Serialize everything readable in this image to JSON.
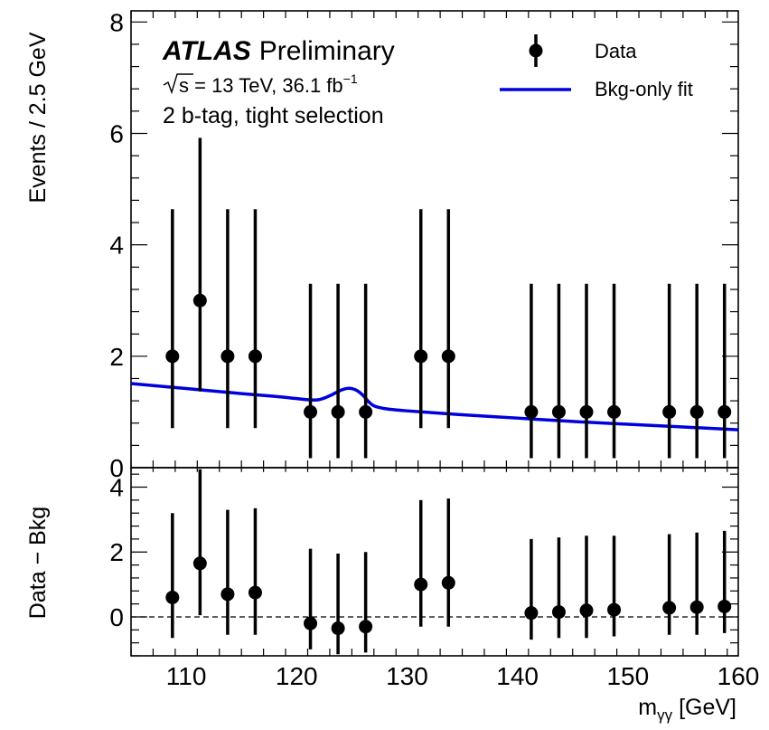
{
  "chart_data": {
    "type": "scatter",
    "x_axis": {
      "label_main": "m",
      "label_sub": "γγ",
      "label_unit": " [GeV]",
      "range": [
        105,
        160
      ],
      "major_ticks": [
        110,
        120,
        130,
        140,
        150,
        160
      ],
      "minor_step": 2
    },
    "main_panel": {
      "ylabel": "Events / 2.5 GeV",
      "ylim": [
        0,
        8.2
      ],
      "major_ticks": [
        0,
        2,
        4,
        6,
        8
      ],
      "minor_step": 0.4,
      "annotation": {
        "experiment": "ATLAS",
        "status": "Preliminary",
        "energy_line": "s = 13 TeV, 36.1 fb",
        "energy_sup": "−1",
        "selection": "2 b-tag, tight selection"
      },
      "legend": {
        "placement": "top-right",
        "data_label": "Data",
        "fit_label": "Bkg-only fit"
      },
      "data": [
        {
          "x": 108.75,
          "y": 2,
          "err_low": 1.29,
          "err_high": 2.64
        },
        {
          "x": 111.25,
          "y": 3,
          "err_low": 1.63,
          "err_high": 2.92
        },
        {
          "x": 113.75,
          "y": 2,
          "err_low": 1.29,
          "err_high": 2.64
        },
        {
          "x": 116.25,
          "y": 2,
          "err_low": 1.29,
          "err_high": 2.64
        },
        {
          "x": 121.25,
          "y": 1,
          "err_low": 0.83,
          "err_high": 2.3
        },
        {
          "x": 123.75,
          "y": 1,
          "err_low": 0.83,
          "err_high": 2.3
        },
        {
          "x": 126.25,
          "y": 1,
          "err_low": 0.83,
          "err_high": 2.3
        },
        {
          "x": 131.25,
          "y": 2,
          "err_low": 1.29,
          "err_high": 2.64
        },
        {
          "x": 133.75,
          "y": 2,
          "err_low": 1.29,
          "err_high": 2.64
        },
        {
          "x": 141.25,
          "y": 1,
          "err_low": 0.83,
          "err_high": 2.3
        },
        {
          "x": 143.75,
          "y": 1,
          "err_low": 0.83,
          "err_high": 2.3
        },
        {
          "x": 146.25,
          "y": 1,
          "err_low": 0.83,
          "err_high": 2.3
        },
        {
          "x": 148.75,
          "y": 1,
          "err_low": 0.83,
          "err_high": 2.3
        },
        {
          "x": 153.75,
          "y": 1,
          "err_low": 0.83,
          "err_high": 2.3
        },
        {
          "x": 156.25,
          "y": 1,
          "err_low": 0.83,
          "err_high": 2.3
        },
        {
          "x": 158.75,
          "y": 1,
          "err_low": 0.83,
          "err_high": 2.3
        }
      ],
      "fit_curve": {
        "color": "#0000dd",
        "x": [
          105,
          110,
          115,
          118,
          120,
          121,
          122,
          123,
          123.5,
          124,
          124.5,
          125,
          125.5,
          126,
          126.5,
          127,
          128,
          130,
          135,
          140,
          145,
          150,
          155,
          160
        ],
        "y": [
          1.51,
          1.42,
          1.33,
          1.28,
          1.24,
          1.22,
          1.22,
          1.29,
          1.34,
          1.39,
          1.42,
          1.42,
          1.38,
          1.3,
          1.19,
          1.11,
          1.06,
          1.02,
          0.95,
          0.89,
          0.83,
          0.78,
          0.73,
          0.68
        ]
      }
    },
    "ratio_panel": {
      "ylabel": "Data − Bkg",
      "ylim": [
        -1.2,
        4.6
      ],
      "major_ticks": [
        0,
        2,
        4
      ],
      "minor_step": 0.4,
      "reference_line": 0,
      "data": [
        {
          "x": 108.75,
          "y": 0.6,
          "low": -0.65,
          "high": 3.2
        },
        {
          "x": 111.25,
          "y": 1.65,
          "low": 0.05,
          "high": 4.55
        },
        {
          "x": 113.75,
          "y": 0.7,
          "low": -0.55,
          "high": 3.3
        },
        {
          "x": 116.25,
          "y": 0.75,
          "low": -0.55,
          "high": 3.35
        },
        {
          "x": 121.25,
          "y": -0.2,
          "low": -1.0,
          "high": 2.1
        },
        {
          "x": 123.75,
          "y": -0.35,
          "low": -1.15,
          "high": 1.95
        },
        {
          "x": 126.25,
          "y": -0.3,
          "low": -1.1,
          "high": 2.0
        },
        {
          "x": 131.25,
          "y": 1.0,
          "low": -0.3,
          "high": 3.6
        },
        {
          "x": 133.75,
          "y": 1.05,
          "low": -0.3,
          "high": 3.65
        },
        {
          "x": 141.25,
          "y": 0.12,
          "low": -0.7,
          "high": 2.4
        },
        {
          "x": 143.75,
          "y": 0.15,
          "low": -0.65,
          "high": 2.45
        },
        {
          "x": 146.25,
          "y": 0.2,
          "low": -0.65,
          "high": 2.5
        },
        {
          "x": 148.75,
          "y": 0.22,
          "low": -0.6,
          "high": 2.5
        },
        {
          "x": 153.75,
          "y": 0.28,
          "low": -0.55,
          "high": 2.55
        },
        {
          "x": 156.25,
          "y": 0.3,
          "low": -0.55,
          "high": 2.6
        },
        {
          "x": 158.75,
          "y": 0.32,
          "low": -0.5,
          "high": 2.65
        }
      ]
    }
  }
}
